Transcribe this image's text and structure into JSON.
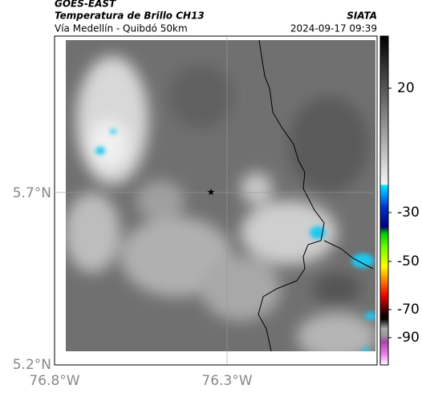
{
  "header": {
    "product": "GOES-EAST",
    "title": "Temperatura de Brillo CH13",
    "source": "SIATA",
    "subtitle": "Vía Medellín - Quibdó 50km",
    "datetime": "2024-09-17 09:39"
  },
  "map": {
    "lat_labels": [
      "5.7°N",
      "5.2°N"
    ],
    "lon_labels": [
      "76.8°W",
      "76.3°W"
    ]
  },
  "colorbar": {
    "ticks": [
      20,
      -30,
      -50,
      -70,
      -90
    ]
  }
}
